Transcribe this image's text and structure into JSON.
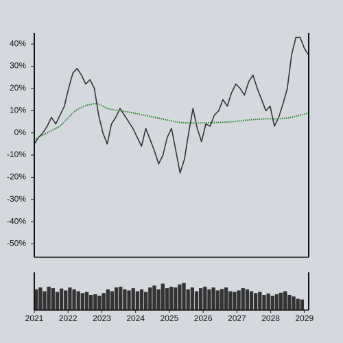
{
  "chart_data": [
    {
      "type": "line",
      "x": [
        2021,
        2021.125,
        2021.25,
        2021.375,
        2021.5,
        2021.625,
        2021.75,
        2021.875,
        2022,
        2022.125,
        2022.25,
        2022.375,
        2022.5,
        2022.625,
        2022.75,
        2022.875,
        2023,
        2023.125,
        2023.25,
        2023.375,
        2023.5,
        2023.625,
        2023.75,
        2023.875,
        2024,
        2024.125,
        2024.25,
        2024.375,
        2024.5,
        2024.625,
        2024.75,
        2024.875,
        2025,
        2025.125,
        2025.25,
        2025.375,
        2025.5,
        2025.625,
        2025.75,
        2025.875,
        2026,
        2026.125,
        2026.25,
        2026.375,
        2026.5,
        2026.625,
        2026.75,
        2026.875,
        2027,
        2027.125,
        2027.25,
        2027.375,
        2027.5,
        2027.625,
        2027.75,
        2027.875,
        2028,
        2028.125,
        2028.25,
        2028.375,
        2028.5,
        2028.625,
        2028.75,
        2028.875,
        2029
      ],
      "series": [
        {
          "color": "#333333",
          "values": [
            -5,
            -2,
            0,
            3,
            7,
            4,
            8,
            12,
            20,
            27,
            29,
            26,
            22,
            24,
            20,
            8,
            0,
            -5,
            4,
            7,
            11,
            8,
            5,
            2,
            -2,
            -6,
            2,
            -3,
            -8,
            -14,
            -10,
            -2,
            2,
            -8,
            -18,
            -12,
            0,
            11,
            2,
            -4,
            4,
            3,
            8,
            10,
            15,
            12,
            18,
            22,
            20,
            17,
            23,
            26,
            20,
            15,
            10,
            12,
            3,
            7,
            13,
            20,
            35,
            43,
            43,
            38,
            35
          ]
        },
        {
          "color": "#2e7d32",
          "dotted": true,
          "values": [
            -3,
            -2,
            -1,
            0,
            1,
            2,
            3,
            5,
            7,
            9,
            10.5,
            11.5,
            12.3,
            12.8,
            13.2,
            13,
            12,
            11,
            10.5,
            10.2,
            10,
            9.7,
            9.4,
            9,
            8.6,
            8.2,
            7.8,
            7.4,
            7,
            6.6,
            6.2,
            5.8,
            5.4,
            5,
            4.7,
            4.5,
            4.4,
            4.4,
            4.4,
            4.5,
            4.5,
            4.6,
            4.6,
            4.7,
            4.8,
            4.9,
            5,
            5.2,
            5.4,
            5.6,
            5.8,
            6,
            6.1,
            6.2,
            6.3,
            6.3,
            6.3,
            6.4,
            6.5,
            6.7,
            7,
            7.5,
            8,
            8.5,
            9
          ]
        }
      ],
      "xlim": [
        2021,
        2029
      ],
      "ylim": [
        -56,
        45
      ],
      "yticks": [
        {
          "value": 40,
          "label": "40%"
        },
        {
          "value": 30,
          "label": "30%"
        },
        {
          "value": 20,
          "label": "20%"
        },
        {
          "value": 10,
          "label": "10%"
        },
        {
          "value": 0,
          "label": "0%"
        },
        {
          "value": -10,
          "label": "-10%"
        },
        {
          "value": -20,
          "label": "-20%"
        },
        {
          "value": -30,
          "label": "-30%"
        },
        {
          "value": -40,
          "label": "-40%"
        },
        {
          "value": -50,
          "label": "-50%"
        }
      ]
    },
    {
      "type": "bar",
      "x": [
        2021,
        2021.125,
        2021.25,
        2021.375,
        2021.5,
        2021.625,
        2021.75,
        2021.875,
        2022,
        2022.125,
        2022.25,
        2022.375,
        2022.5,
        2022.625,
        2022.75,
        2022.875,
        2023,
        2023.125,
        2023.25,
        2023.375,
        2023.5,
        2023.625,
        2023.75,
        2023.875,
        2024,
        2024.125,
        2024.25,
        2024.375,
        2024.5,
        2024.625,
        2024.75,
        2024.875,
        2025,
        2025.125,
        2025.25,
        2025.375,
        2025.5,
        2025.625,
        2025.75,
        2025.875,
        2026,
        2026.125,
        2026.25,
        2026.375,
        2026.5,
        2026.625,
        2026.75,
        2026.875,
        2027,
        2027.125,
        2027.25,
        2027.375,
        2027.5,
        2027.625,
        2027.75,
        2027.875,
        2028,
        2028.125,
        2028.25,
        2028.375,
        2028.5,
        2028.625,
        2028.75,
        2028.875
      ],
      "color": "#333333",
      "values": [
        55,
        60,
        50,
        62,
        58,
        48,
        57,
        52,
        60,
        55,
        50,
        45,
        48,
        40,
        42,
        38,
        45,
        55,
        50,
        60,
        62,
        55,
        52,
        58,
        50,
        55,
        48,
        60,
        65,
        55,
        70,
        58,
        62,
        60,
        68,
        72,
        55,
        60,
        50,
        58,
        62,
        55,
        60,
        52,
        56,
        60,
        50,
        48,
        52,
        58,
        55,
        50,
        45,
        48,
        40,
        44,
        38,
        42,
        46,
        50,
        40,
        36,
        30,
        28
      ],
      "xlim": [
        2021,
        2029.125
      ],
      "ylim": [
        0,
        100
      ],
      "xticks": [
        2021,
        2022,
        2023,
        2024,
        2025,
        2026,
        2027,
        2028,
        2029
      ]
    }
  ]
}
